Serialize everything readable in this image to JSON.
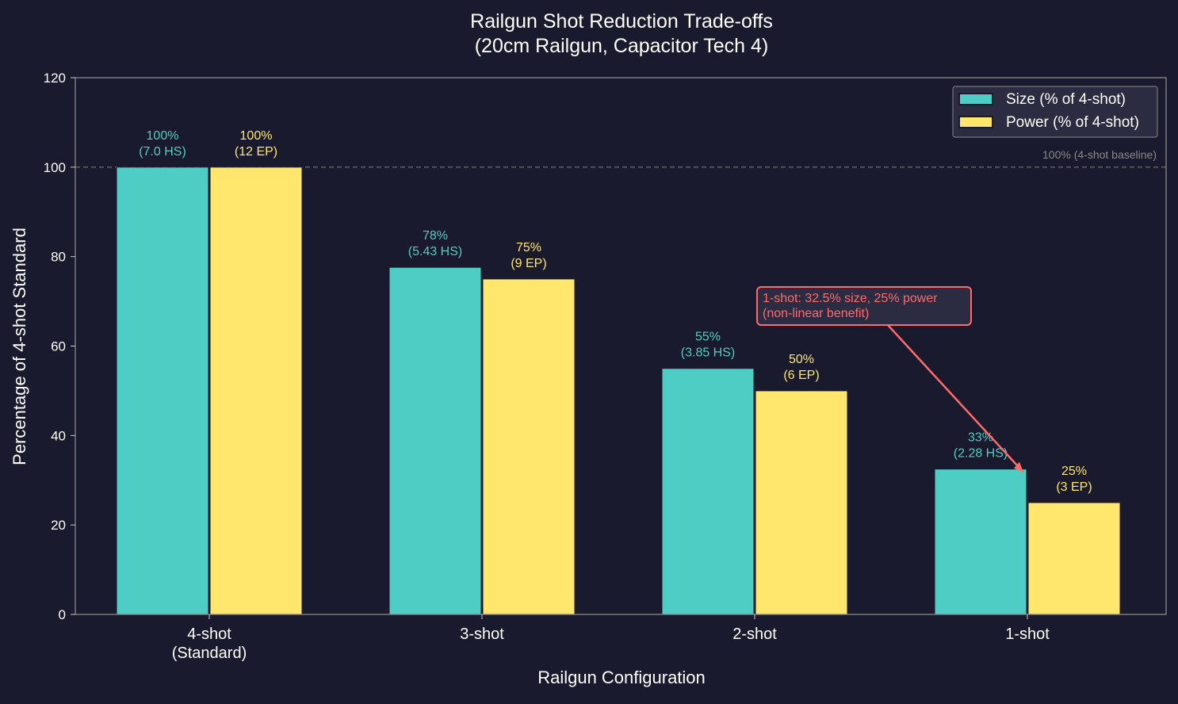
{
  "chart_data": {
    "type": "bar",
    "title_line1": "Railgun Shot Reduction Trade-offs",
    "title_line2": "(20cm Railgun, Capacitor Tech 4)",
    "xlabel": "Railgun Configuration",
    "ylabel": "Percentage of 4-shot Standard",
    "ylim": [
      0,
      120
    ],
    "yticks": [
      "0",
      "20",
      "40",
      "60",
      "80",
      "100",
      "120"
    ],
    "categories": [
      [
        "4-shot",
        "(Standard)"
      ],
      [
        "3-shot"
      ],
      [
        "2-shot"
      ],
      [
        "1-shot"
      ]
    ],
    "series": [
      {
        "name": "Size (% of 4-shot)",
        "color": "#4ecdc4",
        "values": [
          100,
          77.6,
          55,
          32.5
        ],
        "labels": [
          [
            "100%",
            "(7.0 HS)"
          ],
          [
            "78%",
            "(5.43 HS)"
          ],
          [
            "55%",
            "(3.85 HS)"
          ],
          [
            "33%",
            "(2.28 HS)"
          ]
        ]
      },
      {
        "name": "Power (% of 4-shot)",
        "color": "#ffe66d",
        "values": [
          100,
          75,
          50,
          25
        ],
        "labels": [
          [
            "100%",
            "(12 EP)"
          ],
          [
            "75%",
            "(9 EP)"
          ],
          [
            "50%",
            "(6 EP)"
          ],
          [
            "25%",
            "(3 EP)"
          ]
        ]
      }
    ],
    "reference_line": {
      "value": 100,
      "label": "100% (4-shot baseline)"
    },
    "annotation": {
      "lines": [
        "1-shot: 32.5% size, 25% power",
        "(non-linear benefit)"
      ],
      "color": "#ff6b6b",
      "points_to": {
        "category": "1-shot",
        "value": 32.5
      }
    },
    "legend": "top-right",
    "grid": false
  }
}
